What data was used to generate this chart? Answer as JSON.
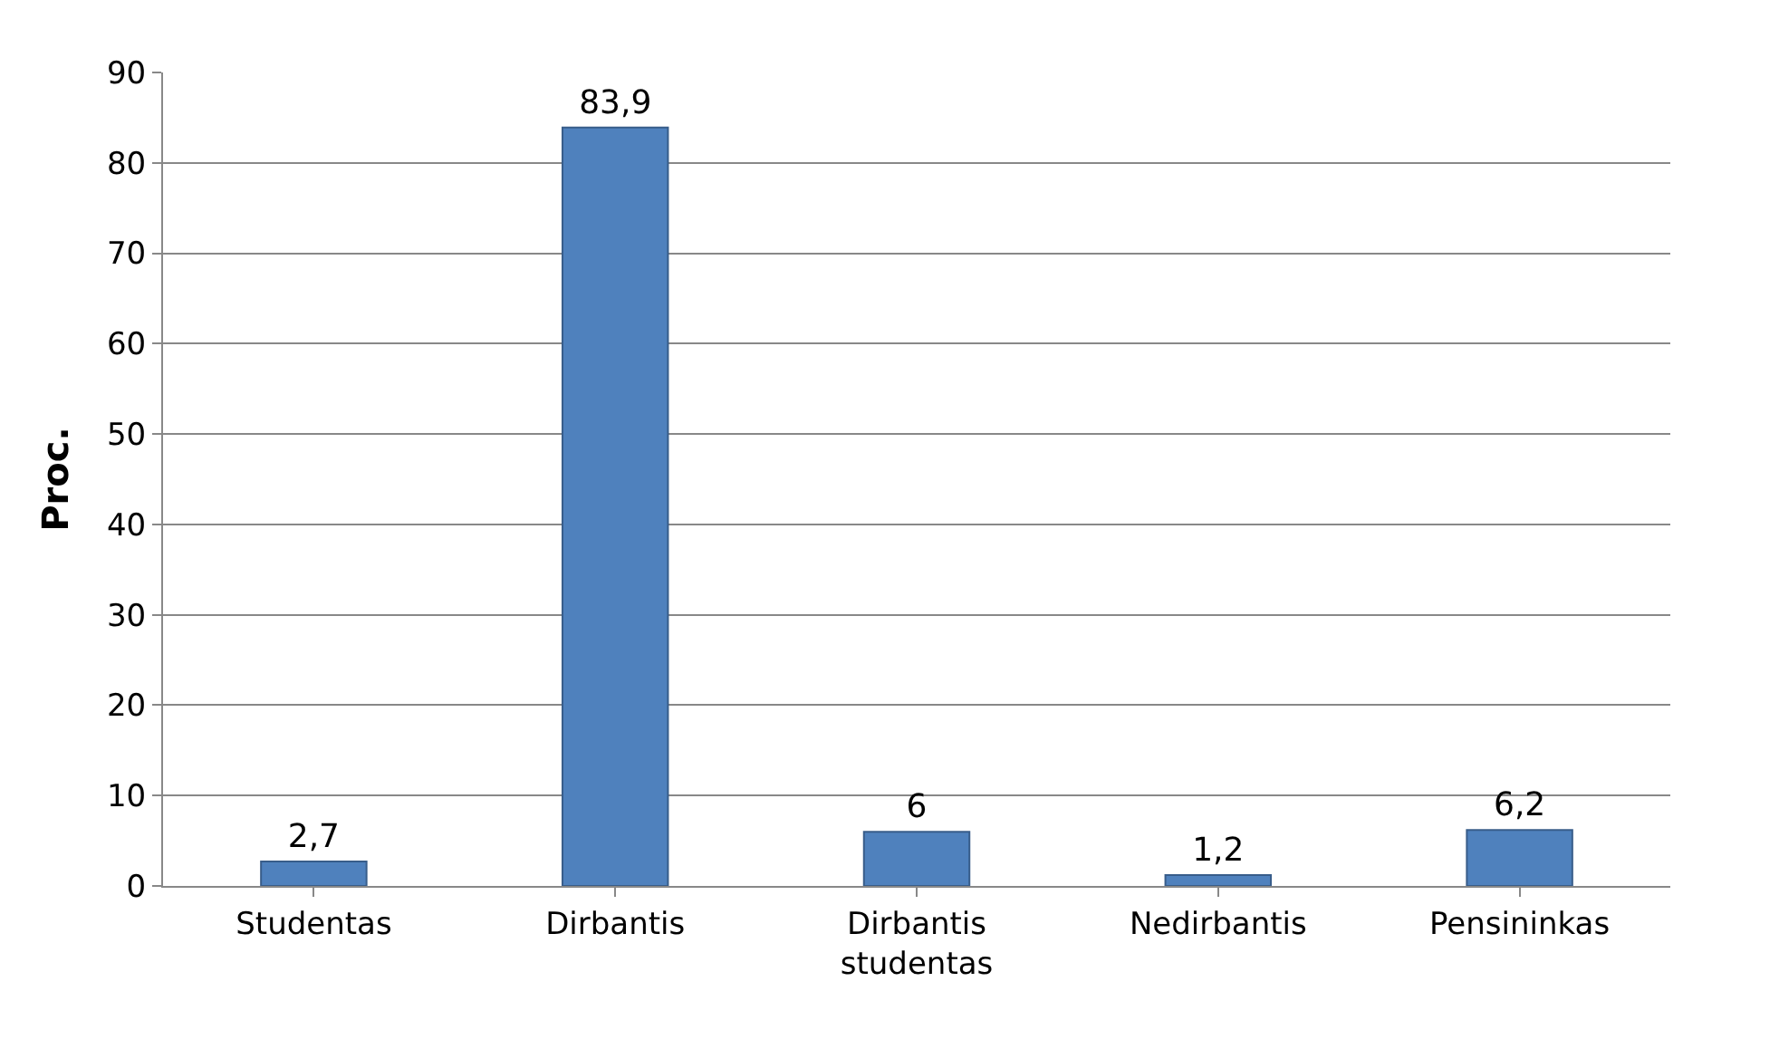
{
  "chart_data": {
    "type": "bar",
    "ylabel": "Proc.",
    "categories": [
      "Studentas",
      "Dirbantis",
      "Dirbantis studentas",
      "Nedirbantis",
      "Pensininkas"
    ],
    "values": [
      2.7,
      83.9,
      6,
      1.2,
      6.2
    ],
    "value_labels": [
      "2,7",
      "83,9",
      "6",
      "1,2",
      "6,2"
    ],
    "color": "#4f81bd",
    "ylim": [
      0,
      90
    ],
    "yticks": [
      0,
      10,
      20,
      30,
      40,
      50,
      60,
      70,
      80,
      90
    ],
    "grid": "y"
  }
}
